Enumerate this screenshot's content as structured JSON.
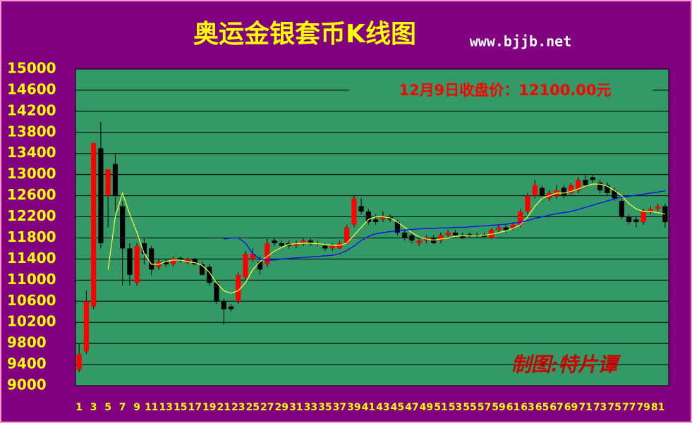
{
  "chart_data": {
    "type": "candlestick",
    "title": "奥运金银套币K线图",
    "subtitle": "www.bjjb.net",
    "annotation": "12月9日收盘价：12100.00元",
    "credit": "制图:特片谭",
    "categories": [
      "1",
      null,
      "3",
      null,
      "5",
      null,
      "7",
      null,
      "9",
      null,
      "11",
      null,
      "13",
      null,
      "15",
      null,
      "17",
      null,
      "19",
      null,
      "21",
      null,
      "23",
      null,
      "25",
      null,
      "27",
      null,
      "29",
      null,
      "31",
      null,
      "33",
      null,
      "35",
      null,
      "37",
      null,
      "39",
      null,
      "41",
      null,
      "43",
      null,
      "45",
      null,
      "47",
      null,
      "49",
      null,
      "51",
      null,
      "53",
      null,
      "55",
      null,
      "57",
      null,
      "59",
      null,
      "61",
      null,
      "63",
      null,
      "65",
      null,
      "67",
      null,
      "69",
      null,
      "71",
      null,
      "73",
      null,
      "75",
      null,
      "77",
      null,
      "79",
      null,
      "81",
      null
    ],
    "open": [
      9300,
      9650,
      10500,
      13500,
      12600,
      13200,
      12400,
      11600,
      10950,
      11700,
      11600,
      11250,
      11350,
      11300,
      11420,
      11330,
      11400,
      11300,
      11250,
      10950,
      10600,
      10500,
      10600,
      11050,
      11400,
      11350,
      11300,
      11750,
      11700,
      11700,
      11650,
      11700,
      11750,
      11700,
      11650,
      11600,
      11600,
      11700,
      12050,
      12400,
      12300,
      12150,
      12150,
      12200,
      12100,
      11900,
      11850,
      11700,
      11750,
      11800,
      11750,
      11850,
      11900,
      11850,
      11870,
      11860,
      11850,
      11800,
      11950,
      12000,
      11980,
      12050,
      12300,
      12600,
      12750,
      12550,
      12600,
      12750,
      12650,
      12700,
      12900,
      12950,
      12850,
      12800,
      12700,
      12500,
      12200,
      12150,
      12100,
      12300,
      12350,
      12400
    ],
    "high": [
      9800,
      10800,
      13600,
      14000,
      13100,
      13400,
      12500,
      11700,
      11700,
      11800,
      11650,
      11400,
      11400,
      11450,
      11450,
      11420,
      11420,
      11350,
      11300,
      11000,
      10650,
      10550,
      11150,
      11550,
      11600,
      11450,
      11800,
      11800,
      11750,
      11750,
      11750,
      11800,
      11800,
      11750,
      11700,
      11700,
      11750,
      12050,
      12600,
      12550,
      12350,
      12250,
      12300,
      12250,
      12150,
      11950,
      11900,
      11800,
      11850,
      11850,
      11900,
      11950,
      11950,
      11900,
      11900,
      11900,
      11900,
      11980,
      12050,
      12050,
      12100,
      12350,
      12650,
      12900,
      12800,
      12700,
      12800,
      12800,
      12850,
      12950,
      13000,
      13000,
      12900,
      12850,
      12750,
      12550,
      12250,
      12200,
      12350,
      12400,
      12450,
      12450
    ],
    "low": [
      9250,
      9600,
      10450,
      11600,
      12000,
      12300,
      10900,
      10900,
      10900,
      11300,
      11100,
      11200,
      11250,
      11250,
      11330,
      11300,
      11280,
      11080,
      10900,
      10550,
      10150,
      10400,
      10550,
      11000,
      11350,
      11100,
      11250,
      11650,
      11620,
      11600,
      11600,
      11650,
      11650,
      11650,
      11550,
      11550,
      11580,
      11680,
      12000,
      12250,
      12050,
      12050,
      12100,
      12100,
      11850,
      11750,
      11700,
      11650,
      11700,
      11680,
      11700,
      11800,
      11820,
      11780,
      11800,
      11800,
      11820,
      11780,
      11900,
      11900,
      11950,
      12000,
      12250,
      12550,
      12550,
      12500,
      12550,
      12550,
      12600,
      12650,
      12750,
      12850,
      12650,
      12600,
      12500,
      12150,
      12050,
      12000,
      12050,
      12250,
      12300,
      12000
    ],
    "close": [
      9600,
      10600,
      13600,
      11700,
      13100,
      12600,
      11600,
      11100,
      11650,
      11500,
      11200,
      11350,
      11300,
      11400,
      11380,
      11400,
      11300,
      11100,
      10950,
      10600,
      10450,
      10450,
      11100,
      11500,
      11500,
      11200,
      11700,
      11700,
      11650,
      11650,
      11700,
      11750,
      11700,
      11700,
      11600,
      11650,
      11700,
      12000,
      12550,
      12300,
      12100,
      12100,
      12200,
      12150,
      11900,
      11800,
      11750,
      11750,
      11800,
      11700,
      11850,
      11900,
      11850,
      11800,
      11850,
      11840,
      11820,
      11950,
      12000,
      11950,
      12050,
      12300,
      12600,
      12800,
      12600,
      12650,
      12700,
      12600,
      12800,
      12900,
      12800,
      12900,
      12700,
      12650,
      12550,
      12200,
      12100,
      12100,
      12300,
      12350,
      12400,
      12100
    ],
    "up_color": "#ff0000",
    "down_color": "#000000",
    "series": [
      {
        "color": "#ffff33",
        "values": [
          null,
          null,
          null,
          null,
          11200,
          12200,
          12650,
          12250,
          11900,
          11500,
          11300,
          11300,
          11350,
          11380,
          11380,
          11350,
          11330,
          11280,
          11150,
          10950,
          10800,
          10750,
          10800,
          10950,
          11200,
          11350,
          11450,
          11550,
          11620,
          11680,
          11690,
          11700,
          11700,
          11690,
          11680,
          11660,
          11660,
          11700,
          11850,
          12000,
          12150,
          12200,
          12200,
          12180,
          12100,
          12000,
          11900,
          11820,
          11780,
          11760,
          11780,
          11800,
          11830,
          11840,
          11840,
          11840,
          11850,
          11870,
          11900,
          11930,
          11980,
          12050,
          12200,
          12400,
          12550,
          12600,
          12650,
          12650,
          12680,
          12730,
          12780,
          12820,
          12820,
          12780,
          12700,
          12600,
          12450,
          12350,
          12300,
          12300,
          12280,
          12250
        ]
      },
      {
        "color": "#0000ff",
        "values": [
          null,
          null,
          null,
          null,
          null,
          null,
          null,
          null,
          null,
          null,
          null,
          null,
          null,
          null,
          null,
          null,
          null,
          null,
          null,
          null,
          11780,
          11800,
          11800,
          11700,
          11500,
          11400,
          11380,
          11380,
          11400,
          11410,
          11420,
          11430,
          11440,
          11450,
          11460,
          11470,
          11500,
          11560,
          11650,
          11750,
          11830,
          11880,
          11900,
          11920,
          11940,
          11950,
          11960,
          11970,
          11980,
          11980,
          11990,
          11990,
          12000,
          12000,
          12010,
          12020,
          12030,
          12040,
          12050,
          12060,
          12080,
          12100,
          12130,
          12170,
          12200,
          12230,
          12260,
          12280,
          12300,
          12340,
          12380,
          12420,
          12460,
          12500,
          12540,
          12570,
          12590,
          12610,
          12630,
          12650,
          12670,
          12690
        ]
      }
    ],
    "ylim": [
      9000,
      15000
    ],
    "yticks": [
      9000,
      9400,
      9800,
      10200,
      10600,
      11000,
      11400,
      11800,
      12200,
      12600,
      13000,
      13400,
      13800,
      14200,
      14600,
      15000
    ],
    "grid": true
  }
}
